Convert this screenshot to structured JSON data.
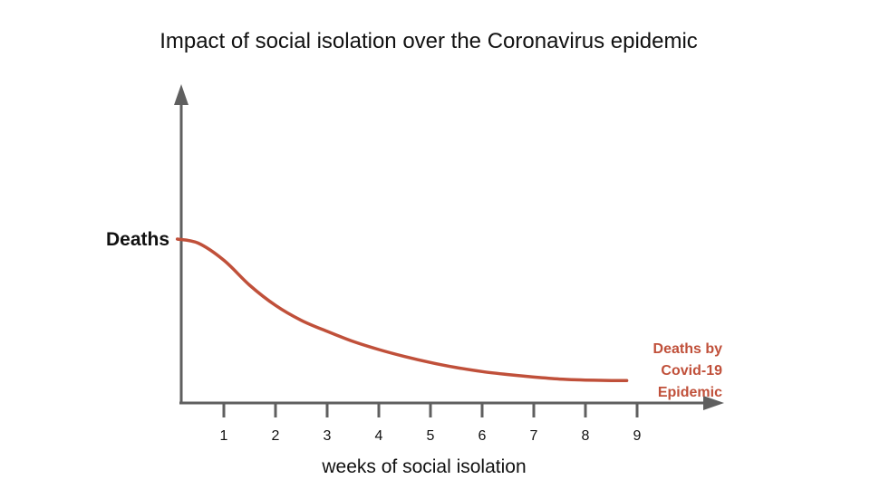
{
  "chart_data": {
    "type": "line",
    "title": "Impact of social isolation over the Coronavirus epidemic",
    "xlabel": "weeks of social isolation",
    "ylabel": "Deaths",
    "x_ticks": [
      1,
      2,
      3,
      4,
      5,
      6,
      7,
      8,
      9
    ],
    "xlim": [
      0,
      10
    ],
    "ylim": [
      0,
      100
    ],
    "grid": false,
    "series": [
      {
        "name": "Deaths by Covid-19 Epidemic",
        "name_lines": [
          "Deaths by",
          "Covid-19",
          "Epidemic"
        ],
        "color": "#c0503a",
        "x": [
          0.1,
          0.5,
          1.0,
          1.5,
          2.0,
          2.5,
          3.0,
          3.5,
          4.0,
          4.5,
          5.0,
          5.5,
          6.0,
          6.5,
          7.0,
          7.5,
          8.0,
          8.5,
          8.8
        ],
        "y": [
          100,
          97.6,
          87.3,
          72.3,
          60.2,
          51.2,
          44.6,
          38.6,
          33.7,
          29.5,
          25.9,
          22.9,
          20.5,
          18.7,
          17.2,
          16.0,
          15.4,
          15.1,
          15.1
        ]
      }
    ],
    "axis_color": "#5f5f5f"
  }
}
